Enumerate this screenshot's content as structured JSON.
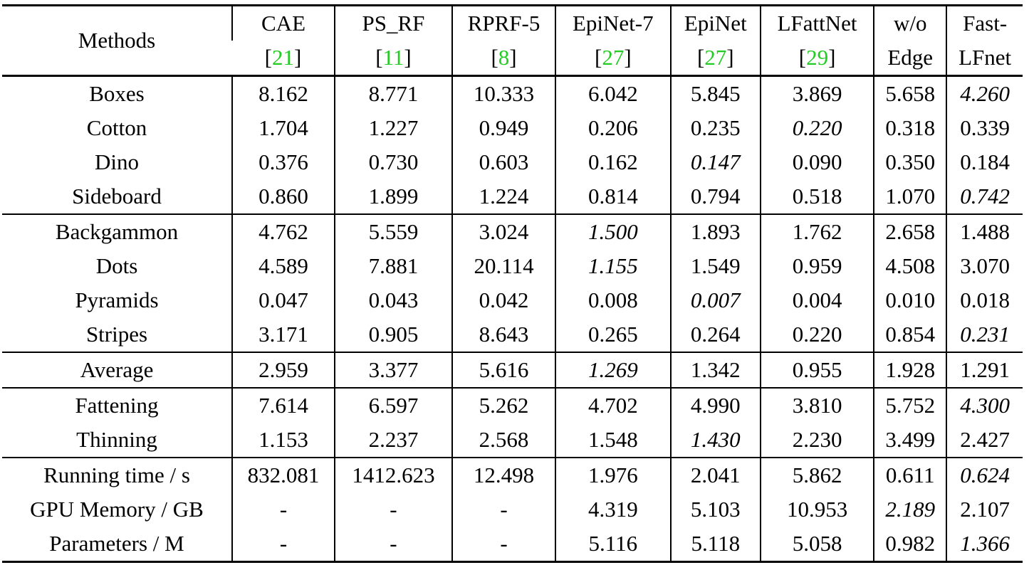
{
  "header": {
    "methods": "Methods",
    "columns": [
      {
        "top": "CAE",
        "ref": "21"
      },
      {
        "top": "PS_RF",
        "ref": "11"
      },
      {
        "top": "RPRF-5",
        "ref": "8"
      },
      {
        "top": "EpiNet-7",
        "ref": "27"
      },
      {
        "top": "EpiNet",
        "ref": "27"
      },
      {
        "top": "LFattNet",
        "ref": "29"
      },
      {
        "top": "w/o",
        "bottom": "Edge"
      },
      {
        "top": "Fast-",
        "bottom": "LFnet"
      }
    ]
  },
  "rows": [
    {
      "name": "Boxes",
      "cells": [
        {
          "v": "8.162"
        },
        {
          "v": "8.771"
        },
        {
          "v": "10.333"
        },
        {
          "v": "6.042"
        },
        {
          "v": "5.845"
        },
        {
          "v": "3.869",
          "s": "best"
        },
        {
          "v": "5.658"
        },
        {
          "v": "4.260",
          "s": "second"
        }
      ]
    },
    {
      "name": "Cotton",
      "cells": [
        {
          "v": "1.704"
        },
        {
          "v": "1.227"
        },
        {
          "v": "0.949"
        },
        {
          "v": "0.206",
          "s": "best"
        },
        {
          "v": "0.235"
        },
        {
          "v": "0.220",
          "s": "second"
        },
        {
          "v": "0.318"
        },
        {
          "v": "0.339"
        }
      ]
    },
    {
      "name": "Dino",
      "cells": [
        {
          "v": "0.376"
        },
        {
          "v": "0.730"
        },
        {
          "v": "0.603"
        },
        {
          "v": "0.162"
        },
        {
          "v": "0.147",
          "s": "second"
        },
        {
          "v": "0.090",
          "s": "best"
        },
        {
          "v": "0.350"
        },
        {
          "v": "0.184"
        }
      ]
    },
    {
      "name": "Sideboard",
      "cells": [
        {
          "v": "0.860"
        },
        {
          "v": "1.899"
        },
        {
          "v": "1.224"
        },
        {
          "v": "0.814"
        },
        {
          "v": "0.794"
        },
        {
          "v": "0.518",
          "s": "best"
        },
        {
          "v": "1.070"
        },
        {
          "v": "0.742",
          "s": "second"
        }
      ]
    },
    {
      "name": "Backgammon",
      "rule": "thin",
      "cells": [
        {
          "v": "4.762"
        },
        {
          "v": "5.559"
        },
        {
          "v": "3.024"
        },
        {
          "v": "1.500",
          "s": "second"
        },
        {
          "v": "1.893"
        },
        {
          "v": "1.762"
        },
        {
          "v": "2.658"
        },
        {
          "v": "1.488",
          "s": "best"
        }
      ]
    },
    {
      "name": "Dots",
      "cells": [
        {
          "v": "4.589"
        },
        {
          "v": "7.881"
        },
        {
          "v": "20.114"
        },
        {
          "v": "1.155",
          "s": "second"
        },
        {
          "v": "1.549"
        },
        {
          "v": "0.959",
          "s": "best"
        },
        {
          "v": "4.508"
        },
        {
          "v": "3.070"
        }
      ]
    },
    {
      "name": "Pyramids",
      "cells": [
        {
          "v": "0.047"
        },
        {
          "v": "0.043"
        },
        {
          "v": "0.042"
        },
        {
          "v": "0.008"
        },
        {
          "v": "0.007",
          "s": "second"
        },
        {
          "v": "0.004",
          "s": "best"
        },
        {
          "v": "0.010"
        },
        {
          "v": "0.018"
        }
      ]
    },
    {
      "name": "Stripes",
      "cells": [
        {
          "v": "3.171"
        },
        {
          "v": "0.905"
        },
        {
          "v": "8.643"
        },
        {
          "v": "0.265"
        },
        {
          "v": "0.264"
        },
        {
          "v": "0.220",
          "s": "best"
        },
        {
          "v": "0.854"
        },
        {
          "v": "0.231",
          "s": "second"
        }
      ]
    },
    {
      "name": "Average",
      "rule": "thin",
      "cells": [
        {
          "v": "2.959"
        },
        {
          "v": "3.377"
        },
        {
          "v": "5.616"
        },
        {
          "v": "1.269",
          "s": "second"
        },
        {
          "v": "1.342"
        },
        {
          "v": "0.955",
          "s": "best"
        },
        {
          "v": "1.928"
        },
        {
          "v": "1.291"
        }
      ]
    },
    {
      "name": "Fattening",
      "rule": "thin",
      "cells": [
        {
          "v": "7.614"
        },
        {
          "v": "6.597"
        },
        {
          "v": "5.262"
        },
        {
          "v": "4.702"
        },
        {
          "v": "4.990"
        },
        {
          "v": "3.810",
          "s": "best"
        },
        {
          "v": "5.752"
        },
        {
          "v": "4.300",
          "s": "second"
        }
      ]
    },
    {
      "name": "Thinning",
      "cells": [
        {
          "v": "1.153",
          "s": "best"
        },
        {
          "v": "2.237"
        },
        {
          "v": "2.568"
        },
        {
          "v": "1.548"
        },
        {
          "v": "1.430",
          "s": "second"
        },
        {
          "v": "2.230"
        },
        {
          "v": "3.499"
        },
        {
          "v": "2.427"
        }
      ]
    },
    {
      "name": "Running time / s",
      "rule": "thin",
      "cells": [
        {
          "v": "832.081"
        },
        {
          "v": "1412.623"
        },
        {
          "v": "12.498"
        },
        {
          "v": "1.976"
        },
        {
          "v": "2.041"
        },
        {
          "v": "5.862"
        },
        {
          "v": "0.611",
          "s": "best"
        },
        {
          "v": "0.624",
          "s": "second"
        }
      ]
    },
    {
      "name": "GPU Memory / GB",
      "cells": [
        {
          "v": "-"
        },
        {
          "v": "-"
        },
        {
          "v": "-"
        },
        {
          "v": "4.319"
        },
        {
          "v": "5.103"
        },
        {
          "v": "10.953"
        },
        {
          "v": "2.189",
          "s": "second"
        },
        {
          "v": "2.107",
          "s": "best"
        }
      ]
    },
    {
      "name": "Parameters / M",
      "cells": [
        {
          "v": "-"
        },
        {
          "v": "-"
        },
        {
          "v": "-"
        },
        {
          "v": "5.116"
        },
        {
          "v": "5.118"
        },
        {
          "v": "5.058"
        },
        {
          "v": "0.982",
          "s": "best"
        },
        {
          "v": "1.366",
          "s": "second"
        }
      ]
    }
  ]
}
